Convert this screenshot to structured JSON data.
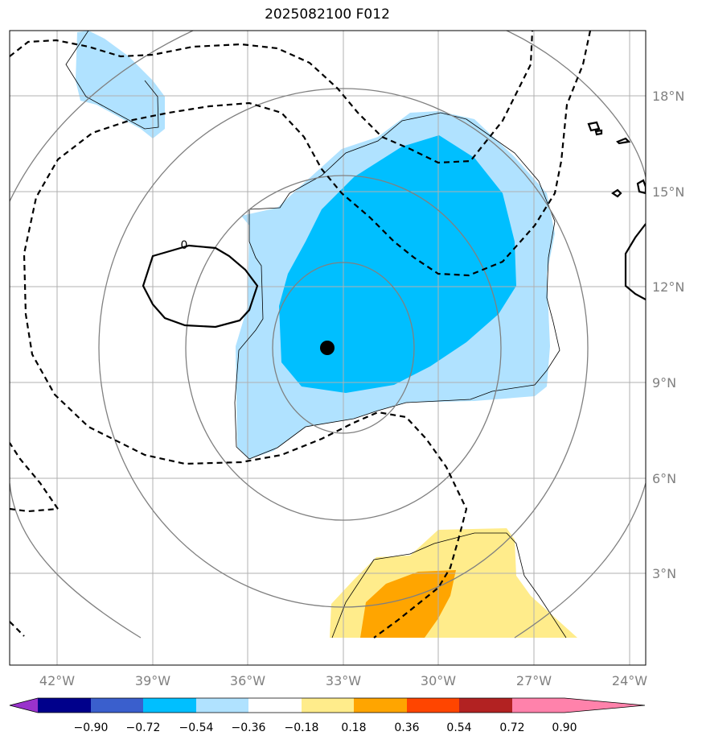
{
  "title": "2025082100 F012",
  "lon_ticks": [
    "42°W",
    "39°W",
    "36°W",
    "33°W",
    "30°W",
    "27°W",
    "24°W"
  ],
  "lat_ticks": [
    "18°N",
    "15°N",
    "12°N",
    "9°N",
    "6°N",
    "3°N"
  ],
  "contour_label": "0",
  "colorbar": {
    "colors": [
      "#9932cc",
      "#00008b",
      "#3a5fcd",
      "#00bfff",
      "#b0e2ff",
      "#ffffff",
      "#ffec8b",
      "#ffa500",
      "#ff4500",
      "#b22222",
      "#ff82ab"
    ],
    "tick_labels": [
      "−0.90",
      "−0.72",
      "−0.54",
      "−0.36",
      "−0.18",
      "0.18",
      "0.36",
      "0.54",
      "0.72",
      "0.90"
    ]
  },
  "chart_data": {
    "type": "map",
    "title": "2025082100 F012",
    "lon_range": [
      -43.5,
      -23.4
    ],
    "lat_range": [
      0.0,
      20.0
    ],
    "center_marker": {
      "lon": -33.5,
      "lat": 10.1
    },
    "levels": [
      -0.9,
      -0.72,
      -0.54,
      -0.36,
      -0.18,
      0.18,
      0.36,
      0.54,
      0.72,
      0.9
    ]
  }
}
